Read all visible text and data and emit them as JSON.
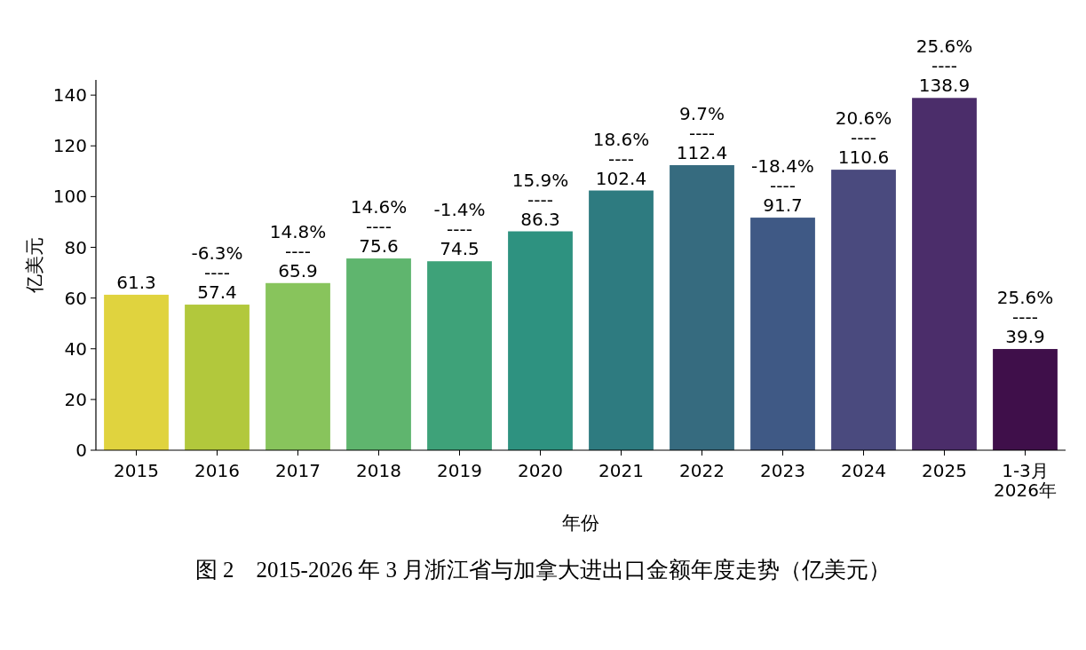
{
  "chart_data": {
    "type": "bar",
    "title": "图 2　2015-2026 年 3 月浙江省与加拿大进出口金额年度走势（亿美元）",
    "xlabel": "年份",
    "ylabel": "亿美元",
    "categories": [
      "2015",
      "2016",
      "2017",
      "2018",
      "2019",
      "2020",
      "2021",
      "2022",
      "2023",
      "2024",
      "2025",
      "1-3月\n2026年"
    ],
    "values": [
      61.3,
      57.4,
      65.9,
      75.6,
      74.5,
      86.3,
      102.4,
      112.4,
      91.7,
      110.6,
      138.9,
      39.9
    ],
    "colors": [
      "#e0d33e",
      "#b2c83c",
      "#88c45c",
      "#5fb56e",
      "#3ea279",
      "#2e9280",
      "#2e7b80",
      "#366b7f",
      "#3f5985",
      "#4a4a7e",
      "#4b2d6a",
      "#3f0f4a"
    ],
    "value_labels": [
      "61.3",
      "-6.3%\n----\n57.4",
      "14.8%\n----\n65.9",
      "14.6%\n----\n75.6",
      "-1.4%\n----\n74.5",
      "15.9%\n----\n86.3",
      "18.6%\n----\n102.4",
      "9.7%\n----\n112.4",
      "-18.4%\n----\n91.7",
      "20.6%\n----\n110.6",
      "25.6%\n----\n138.9",
      "25.6%\n----\n39.9"
    ],
    "ylim": [
      0,
      146
    ],
    "yticks": [
      0,
      20,
      40,
      60,
      80,
      100,
      120,
      140
    ],
    "grid": false
  }
}
